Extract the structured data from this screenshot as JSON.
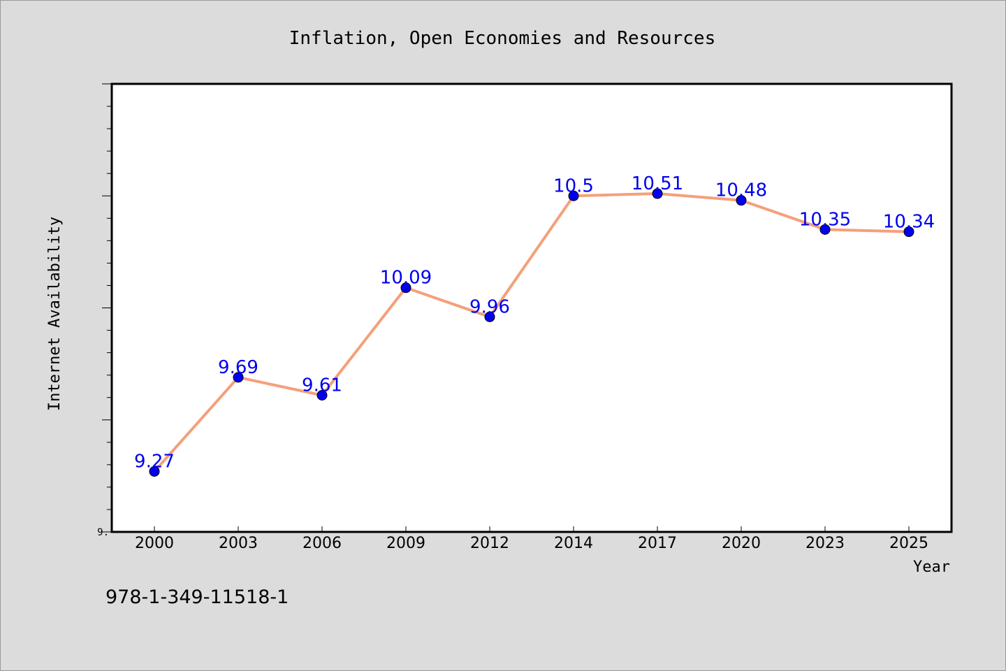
{
  "figure": {
    "background": "#dcdcdc",
    "plot_background": "#ffffff",
    "frame_color": "#000000",
    "code": "978-1-349-11518-1"
  },
  "chart_data": {
    "type": "line",
    "title": "Inflation, Open Economies and Resources",
    "xlabel": "Year",
    "ylabel": "Internet Availability",
    "categories": [
      "2000",
      "2003",
      "2006",
      "2009",
      "2012",
      "2014",
      "2017",
      "2020",
      "2023",
      "2025"
    ],
    "series": [
      {
        "values": [
          9.27,
          9.69,
          9.61,
          10.09,
          9.96,
          10.5,
          10.51,
          10.48,
          10.35,
          10.34
        ],
        "data_labels": [
          "9.27",
          "9.69",
          "9.61",
          "10.09",
          "9.96",
          "10.5",
          "10.51",
          "10.48",
          "10.35",
          "10.34"
        ],
        "line_color": "#f4a07a",
        "marker_color": "#0000ee",
        "label_color": "#0000ee"
      }
    ],
    "ylim": [
      9.0,
      11.0
    ],
    "y_tick_labels": [
      {
        "value": 9.0,
        "label": "9."
      }
    ],
    "y_minor_step": 0.1,
    "y_major_step": 0.5,
    "grid": false,
    "legend": "none"
  }
}
